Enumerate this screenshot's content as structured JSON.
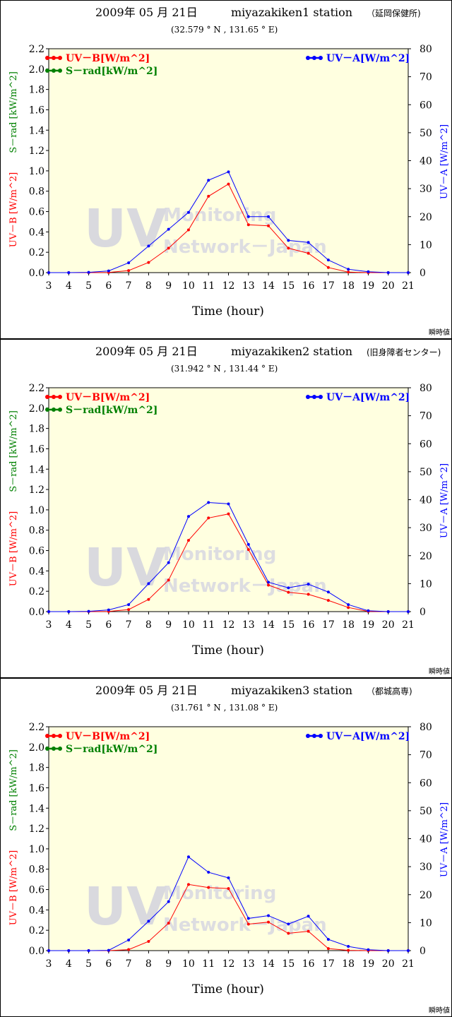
{
  "common": {
    "date_label": "2009年  05 月  21日",
    "x_axis_label": "Time  (hour)",
    "y_left_label": "UV－B [W/m^2]",
    "y_left_label2": "S－rad [kW/m^2]",
    "y_right_label": "UV－A [W/m^2]",
    "legend_uvb": "UV－B[W/m^2]",
    "legend_srad": "S－rad[kW/m^2]",
    "legend_uva": "UV－A[W/m^2]",
    "watermark_big": "UV",
    "watermark_line1": "Monitoring",
    "watermark_line2": "Network－Japan",
    "footer_note": "瞬時値",
    "colors": {
      "uvb": "#ff0000",
      "uva": "#0000ff",
      "srad": "#008000",
      "plot_bg": "#ffffe0"
    }
  },
  "chart_data": [
    {
      "type": "line",
      "station": "miyazakiken1  station",
      "location": "（延岡保健所)",
      "coords": "(32.579 ° N ,  131.65 ° E)",
      "x": [
        3,
        4,
        5,
        6,
        7,
        8,
        9,
        10,
        11,
        12,
        13,
        14,
        15,
        16,
        17,
        18,
        19,
        20,
        21
      ],
      "xlim": [
        3,
        21
      ],
      "ylim_left": [
        0,
        2.2
      ],
      "ylim_right": [
        0,
        80
      ],
      "y_left_ticks": [
        "0.0",
        "0.2",
        "0.4",
        "0.6",
        "0.8",
        "1.0",
        "1.2",
        "1.4",
        "1.6",
        "1.8",
        "2.0",
        "2.2"
      ],
      "y_right_ticks": [
        "0",
        "10",
        "20",
        "30",
        "40",
        "50",
        "60",
        "70",
        "80"
      ],
      "series": [
        {
          "name": "UV－B[W/m^2]",
          "axis": "left",
          "color": "#ff0000",
          "values": [
            0,
            0,
            0,
            0.002,
            0.02,
            0.1,
            0.24,
            0.42,
            0.75,
            0.87,
            0.47,
            0.46,
            0.24,
            0.19,
            0.05,
            0.005,
            0,
            0,
            0
          ]
        },
        {
          "name": "UV－A[W/m^2]",
          "axis": "right",
          "color": "#0000ff",
          "values": [
            0,
            0,
            0.1,
            0.6,
            3.5,
            9.5,
            15.5,
            21.5,
            33,
            36,
            20,
            20,
            11.5,
            10.8,
            4.5,
            1.2,
            0.3,
            0,
            0
          ]
        }
      ]
    },
    {
      "type": "line",
      "station": "miyazakiken2  station",
      "location": "(旧身障者センター)",
      "coords": "(31.942 ° N ,  131.44 ° E)",
      "x": [
        3,
        4,
        5,
        6,
        7,
        8,
        9,
        10,
        11,
        12,
        13,
        14,
        15,
        16,
        17,
        18,
        19,
        20,
        21
      ],
      "xlim": [
        3,
        21
      ],
      "ylim_left": [
        0,
        2.2
      ],
      "ylim_right": [
        0,
        80
      ],
      "y_left_ticks": [
        "0.0",
        "0.2",
        "0.4",
        "0.6",
        "0.8",
        "1.0",
        "1.2",
        "1.4",
        "1.6",
        "1.8",
        "2.0",
        "2.2"
      ],
      "y_right_ticks": [
        "0",
        "10",
        "20",
        "30",
        "40",
        "50",
        "60",
        "70",
        "80"
      ],
      "series": [
        {
          "name": "UV－B[W/m^2]",
          "axis": "left",
          "color": "#ff0000",
          "values": [
            0,
            0,
            0,
            0.002,
            0.02,
            0.12,
            0.31,
            0.7,
            0.92,
            0.96,
            0.61,
            0.26,
            0.19,
            0.17,
            0.11,
            0.04,
            0.002,
            0,
            0
          ]
        },
        {
          "name": "UV－A[W/m^2]",
          "axis": "right",
          "color": "#0000ff",
          "values": [
            0,
            0,
            0.1,
            0.6,
            2.5,
            10,
            17.5,
            34,
            39,
            38.5,
            24,
            10.5,
            8.5,
            9.8,
            7,
            2.5,
            0.3,
            0,
            0
          ]
        }
      ]
    },
    {
      "type": "line",
      "station": "miyazakiken3  station",
      "location": "（都城高専)",
      "coords": "(31.761 ° N ,  131.08 ° E)",
      "x": [
        3,
        4,
        5,
        6,
        7,
        8,
        9,
        10,
        11,
        12,
        13,
        14,
        15,
        16,
        17,
        18,
        19,
        20,
        21
      ],
      "xlim": [
        3,
        21
      ],
      "ylim_left": [
        0,
        2.2
      ],
      "ylim_right": [
        0,
        80
      ],
      "y_left_ticks": [
        "0.0",
        "0.2",
        "0.4",
        "0.6",
        "0.8",
        "1.0",
        "1.2",
        "1.4",
        "1.6",
        "1.8",
        "2.0",
        "2.2"
      ],
      "y_right_ticks": [
        "0",
        "10",
        "20",
        "30",
        "40",
        "50",
        "60",
        "70",
        "80"
      ],
      "series": [
        {
          "name": "UV－B[W/m^2]",
          "axis": "left",
          "color": "#ff0000",
          "values": [
            0,
            0,
            0,
            0,
            0.01,
            0.09,
            0.27,
            0.65,
            0.62,
            0.61,
            0.26,
            0.28,
            0.17,
            0.19,
            0.02,
            0.003,
            0,
            0,
            0
          ]
        },
        {
          "name": "UV－A[W/m^2]",
          "axis": "right",
          "color": "#0000ff",
          "values": [
            0,
            0,
            0,
            0.1,
            3.8,
            10.5,
            17.5,
            33.5,
            28,
            26,
            11.5,
            12.5,
            9.5,
            12.3,
            4,
            1.5,
            0.3,
            0,
            0
          ]
        }
      ]
    }
  ]
}
